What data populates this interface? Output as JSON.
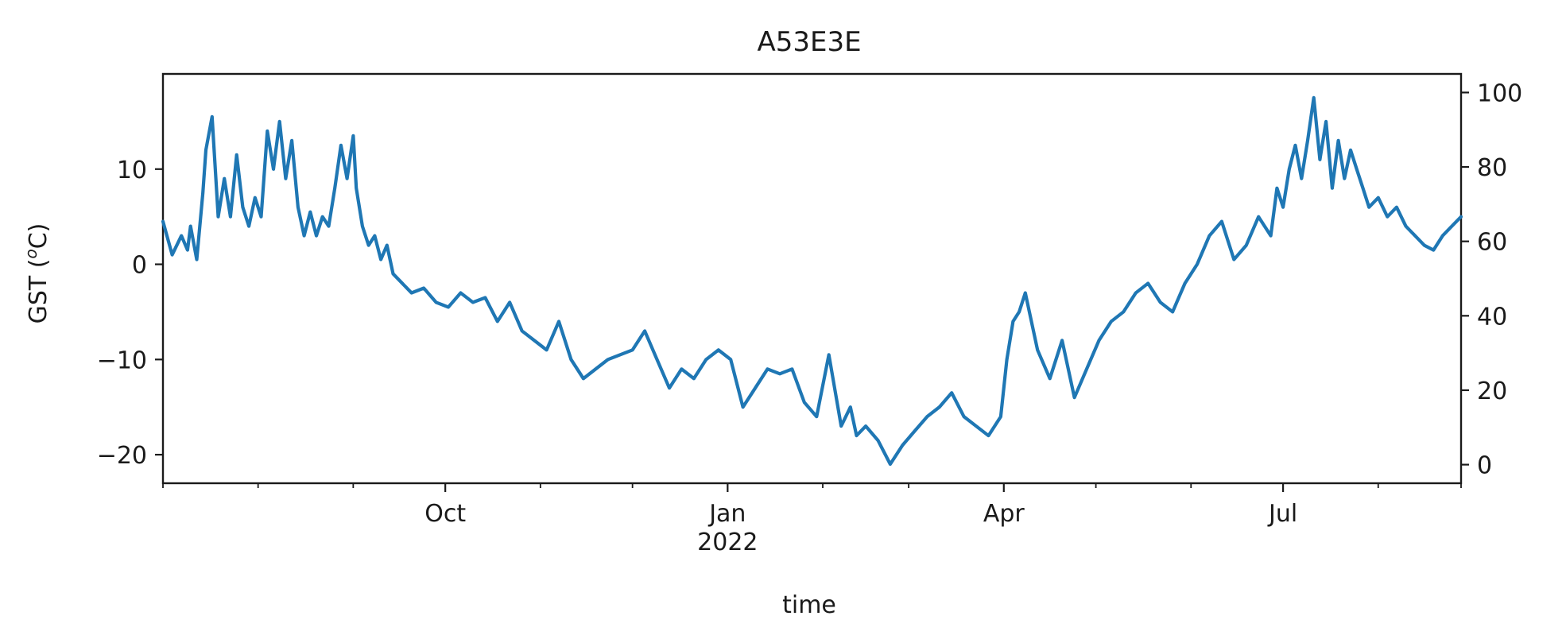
{
  "chart_data": {
    "type": "line",
    "title": "A53E3E",
    "xlabel": "time",
    "ylabel": "GST (°C)",
    "ylabel_parts": {
      "prefix": "GST (",
      "superscript": "o",
      "suffix": "C)"
    },
    "left_axis": {
      "ylim": [
        -23.0,
        20.0
      ],
      "ticks": [
        10,
        0,
        -10,
        -20
      ],
      "tick_labels": [
        "10",
        "0",
        "−10",
        "−20"
      ]
    },
    "right_axis": {
      "ylim": [
        -5,
        105
      ],
      "ticks": [
        100,
        80,
        60,
        40,
        20,
        0
      ],
      "tick_labels": [
        "100",
        "80",
        "60",
        "40",
        "20",
        "0"
      ]
    },
    "x_axis": {
      "start": "2021-07-01",
      "end": "2022-08-28",
      "major_ticks": [
        {
          "date": "2021-10-01",
          "label": "Oct",
          "sublabel": ""
        },
        {
          "date": "2022-01-01",
          "label": "Jan",
          "sublabel": "2022"
        },
        {
          "date": "2022-04-01",
          "label": "Apr",
          "sublabel": ""
        },
        {
          "date": "2022-07-01",
          "label": "Jul",
          "sublabel": ""
        }
      ],
      "minor_ticks": [
        "2021-07-01",
        "2021-08-01",
        "2021-09-01",
        "2021-11-01",
        "2021-12-01",
        "2022-02-01",
        "2022-03-01",
        "2022-05-01",
        "2022-06-01",
        "2022-08-01",
        "2022-08-28"
      ]
    },
    "grid": false,
    "legend": "none",
    "line_color": "#1f77b4",
    "series": [
      {
        "x": [
          "2021-07-01",
          "2021-07-04",
          "2021-07-07",
          "2021-07-09",
          "2021-07-10",
          "2021-07-12",
          "2021-07-14",
          "2021-07-15",
          "2021-07-17",
          "2021-07-19",
          "2021-07-21",
          "2021-07-23",
          "2021-07-25",
          "2021-07-27",
          "2021-07-29",
          "2021-07-31",
          "2021-08-02",
          "2021-08-04",
          "2021-08-06",
          "2021-08-08",
          "2021-08-10",
          "2021-08-12",
          "2021-08-14",
          "2021-08-16",
          "2021-08-18",
          "2021-08-20",
          "2021-08-22",
          "2021-08-24",
          "2021-08-26",
          "2021-08-28",
          "2021-08-30",
          "2021-09-01",
          "2021-09-02",
          "2021-09-04",
          "2021-09-06",
          "2021-09-08",
          "2021-09-10",
          "2021-09-12",
          "2021-09-14",
          "2021-09-17",
          "2021-09-20",
          "2021-09-24",
          "2021-09-28",
          "2021-10-02",
          "2021-10-06",
          "2021-10-10",
          "2021-10-14",
          "2021-10-18",
          "2021-10-22",
          "2021-10-26",
          "2021-10-30",
          "2021-11-03",
          "2021-11-07",
          "2021-11-11",
          "2021-11-15",
          "2021-11-19",
          "2021-11-23",
          "2021-11-27",
          "2021-12-01",
          "2021-12-05",
          "2021-12-09",
          "2021-12-13",
          "2021-12-17",
          "2021-12-21",
          "2021-12-25",
          "2021-12-29",
          "2022-01-02",
          "2022-01-06",
          "2022-01-10",
          "2022-01-14",
          "2022-01-18",
          "2022-01-22",
          "2022-01-26",
          "2022-01-30",
          "2022-02-03",
          "2022-02-07",
          "2022-02-10",
          "2022-02-12",
          "2022-02-15",
          "2022-02-19",
          "2022-02-23",
          "2022-02-27",
          "2022-03-03",
          "2022-03-07",
          "2022-03-11",
          "2022-03-15",
          "2022-03-19",
          "2022-03-23",
          "2022-03-27",
          "2022-03-31",
          "2022-04-02",
          "2022-04-04",
          "2022-04-06",
          "2022-04-08",
          "2022-04-12",
          "2022-04-16",
          "2022-04-20",
          "2022-04-24",
          "2022-04-28",
          "2022-05-02",
          "2022-05-06",
          "2022-05-10",
          "2022-05-14",
          "2022-05-18",
          "2022-05-22",
          "2022-05-26",
          "2022-05-30",
          "2022-06-03",
          "2022-06-07",
          "2022-06-11",
          "2022-06-15",
          "2022-06-19",
          "2022-06-23",
          "2022-06-27",
          "2022-06-29",
          "2022-07-01",
          "2022-07-03",
          "2022-07-05",
          "2022-07-07",
          "2022-07-09",
          "2022-07-11",
          "2022-07-13",
          "2022-07-15",
          "2022-07-17",
          "2022-07-19",
          "2022-07-21",
          "2022-07-23",
          "2022-07-25",
          "2022-07-27",
          "2022-07-29",
          "2022-08-01",
          "2022-08-04",
          "2022-08-07",
          "2022-08-10",
          "2022-08-13",
          "2022-08-16",
          "2022-08-19",
          "2022-08-22",
          "2022-08-25",
          "2022-08-28"
        ],
        "y": [
          4.5,
          1.0,
          3.0,
          1.5,
          4.0,
          0.5,
          7.5,
          12.0,
          15.5,
          5.0,
          9.0,
          5.0,
          11.5,
          6.0,
          4.0,
          7.0,
          5.0,
          14.0,
          10.0,
          15.0,
          9.0,
          13.0,
          6.0,
          3.0,
          5.5,
          3.0,
          5.0,
          4.0,
          8.0,
          12.5,
          9.0,
          13.5,
          8.0,
          4.0,
          2.0,
          3.0,
          0.5,
          2.0,
          -1.0,
          -2.0,
          -3.0,
          -2.5,
          -4.0,
          -4.5,
          -3.0,
          -4.0,
          -3.5,
          -6.0,
          -4.0,
          -7.0,
          -8.0,
          -9.0,
          -6.0,
          -10.0,
          -12.0,
          -11.0,
          -10.0,
          -9.5,
          -9.0,
          -7.0,
          -10.0,
          -13.0,
          -11.0,
          -12.0,
          -10.0,
          -9.0,
          -10.0,
          -15.0,
          -13.0,
          -11.0,
          -11.5,
          -11.0,
          -14.5,
          -16.0,
          -9.5,
          -17.0,
          -15.0,
          -18.0,
          -17.0,
          -18.5,
          -21.0,
          -19.0,
          -17.5,
          -16.0,
          -15.0,
          -13.5,
          -16.0,
          -17.0,
          -18.0,
          -16.0,
          -10.0,
          -6.0,
          -5.0,
          -3.0,
          -9.0,
          -12.0,
          -8.0,
          -14.0,
          -11.0,
          -8.0,
          -6.0,
          -5.0,
          -3.0,
          -2.0,
          -4.0,
          -5.0,
          -2.0,
          0.0,
          3.0,
          4.5,
          0.5,
          2.0,
          5.0,
          3.0,
          8.0,
          6.0,
          10.0,
          12.5,
          9.0,
          13.0,
          17.5,
          11.0,
          15.0,
          8.0,
          13.0,
          9.0,
          12.0,
          10.0,
          8.0,
          6.0,
          7.0,
          5.0,
          6.0,
          4.0,
          3.0,
          2.0,
          1.5,
          3.0,
          4.0,
          5.0
        ]
      }
    ]
  }
}
